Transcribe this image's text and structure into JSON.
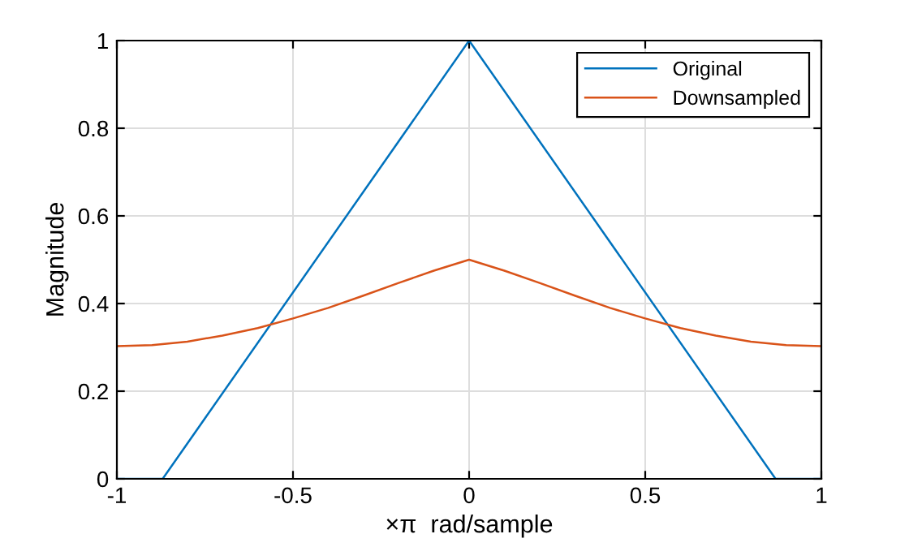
{
  "chart_data": {
    "type": "line",
    "xlabel": "×π  rad/sample",
    "ylabel": "Magnitude",
    "series": [
      {
        "name": "Original",
        "color": "#0072bd",
        "x": [
          -1,
          -0.87,
          0,
          0.87,
          1
        ],
        "values": [
          0,
          0,
          1,
          0,
          0
        ]
      },
      {
        "name": "Downsampled",
        "color": "#d95319",
        "x": [
          -1,
          -0.9,
          -0.8,
          -0.7,
          -0.6,
          -0.5,
          -0.4,
          -0.3,
          -0.2,
          -0.1,
          0,
          0.1,
          0.2,
          0.3,
          0.4,
          0.5,
          0.6,
          0.7,
          0.8,
          0.9,
          1
        ],
        "values": [
          0.303,
          0.305,
          0.313,
          0.327,
          0.344,
          0.366,
          0.39,
          0.418,
          0.447,
          0.475,
          0.5,
          0.475,
          0.447,
          0.418,
          0.39,
          0.366,
          0.344,
          0.327,
          0.313,
          0.305,
          0.303
        ]
      }
    ],
    "xlim": [
      -1,
      1
    ],
    "xticks": [
      -1,
      -0.5,
      0,
      0.5,
      1
    ],
    "ylim": [
      0,
      1
    ],
    "yticks": [
      0,
      0.2,
      0.4,
      0.6,
      0.8,
      1
    ],
    "grid": true,
    "legend": "top right"
  }
}
